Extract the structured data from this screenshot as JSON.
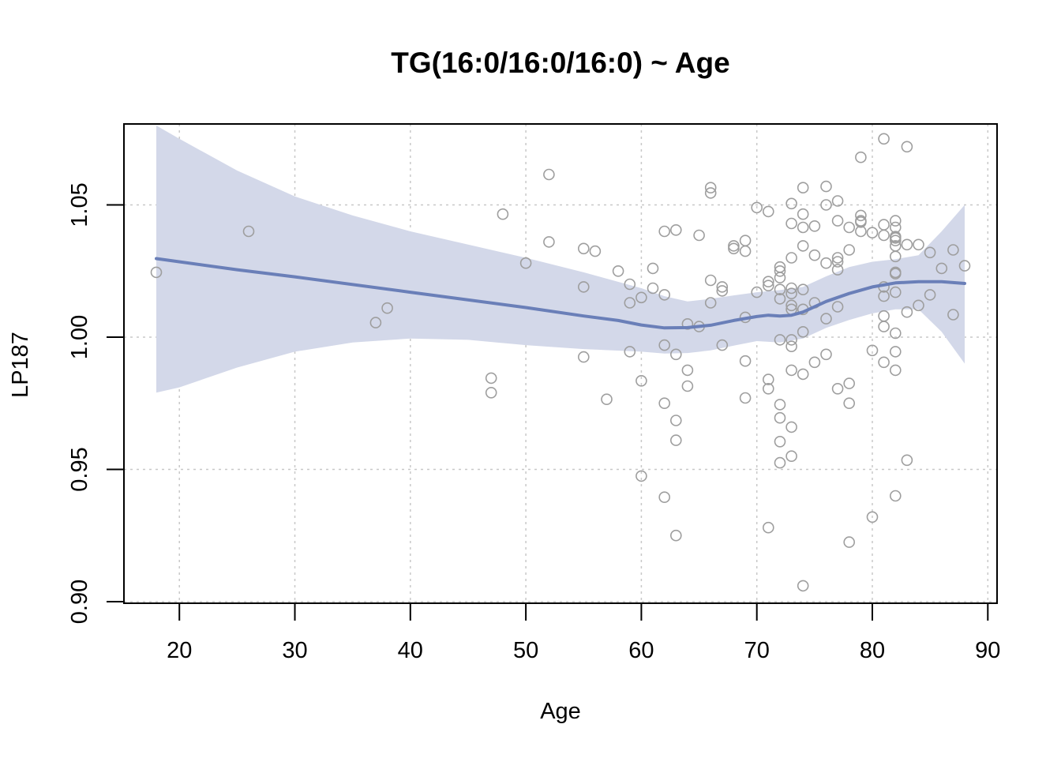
{
  "chart_data": {
    "type": "scatter",
    "title": "TG(16:0/16:0/16:0) ~ Age",
    "xlabel": "Age",
    "ylabel": "LP187",
    "xlim": [
      15.2,
      90.8
    ],
    "ylim": [
      0.8994,
      1.0806
    ],
    "x_ticks": [
      20,
      30,
      40,
      50,
      60,
      70,
      80,
      90
    ],
    "y_ticks": [
      0.9,
      0.95,
      1.0,
      1.05
    ],
    "x_tick_labels": [
      "20",
      "30",
      "40",
      "50",
      "60",
      "70",
      "80",
      "90"
    ],
    "y_tick_labels": [
      "0.90",
      "0.95",
      "1.00",
      "1.05"
    ],
    "grid": true,
    "points": [
      [
        18,
        1.0245
      ],
      [
        26,
        1.04
      ],
      [
        37,
        1.0055
      ],
      [
        38,
        1.011
      ],
      [
        47,
        0.9845
      ],
      [
        47,
        0.979
      ],
      [
        48,
        1.0465
      ],
      [
        50,
        1.028
      ],
      [
        52,
        1.0615
      ],
      [
        52,
        1.036
      ],
      [
        55,
        1.0335
      ],
      [
        55,
        1.019
      ],
      [
        55,
        0.9925
      ],
      [
        56,
        1.0325
      ],
      [
        57,
        0.9765
      ],
      [
        58,
        1.025
      ],
      [
        59,
        1.02
      ],
      [
        59,
        1.013
      ],
      [
        59,
        0.9945
      ],
      [
        60,
        1.015
      ],
      [
        60,
        0.9835
      ],
      [
        60,
        0.9475
      ],
      [
        61,
        1.026
      ],
      [
        61,
        1.0185
      ],
      [
        62,
        1.04
      ],
      [
        62,
        1.016
      ],
      [
        62,
        0.997
      ],
      [
        62,
        0.975
      ],
      [
        62,
        0.9395
      ],
      [
        63,
        1.0405
      ],
      [
        63,
        0.9935
      ],
      [
        63,
        0.9685
      ],
      [
        63,
        0.961
      ],
      [
        63,
        0.925
      ],
      [
        64,
        1.005
      ],
      [
        64,
        0.9875
      ],
      [
        64,
        0.9815
      ],
      [
        65,
        1.0385
      ],
      [
        65,
        1.004
      ],
      [
        66,
        1.0565
      ],
      [
        66,
        1.0545
      ],
      [
        66,
        1.0215
      ],
      [
        66,
        1.013
      ],
      [
        67,
        1.019
      ],
      [
        67,
        1.0175
      ],
      [
        67,
        0.997
      ],
      [
        68,
        1.0345
      ],
      [
        68,
        1.0335
      ],
      [
        69,
        1.0365
      ],
      [
        69,
        1.0325
      ],
      [
        69,
        1.0075
      ],
      [
        69,
        0.991
      ],
      [
        69,
        0.977
      ],
      [
        70,
        1.049
      ],
      [
        70,
        1.017
      ],
      [
        71,
        1.0475
      ],
      [
        71,
        1.021
      ],
      [
        71,
        1.0195
      ],
      [
        71,
        0.984
      ],
      [
        71,
        0.9805
      ],
      [
        71,
        0.928
      ],
      [
        72,
        1.0265
      ],
      [
        72,
        1.025
      ],
      [
        72,
        1.0225
      ],
      [
        72,
        1.018
      ],
      [
        72,
        1.0145
      ],
      [
        72,
        0.999
      ],
      [
        72,
        0.9745
      ],
      [
        72,
        0.9695
      ],
      [
        72,
        0.9605
      ],
      [
        72,
        0.9525
      ],
      [
        73,
        1.0505
      ],
      [
        73,
        1.043
      ],
      [
        73,
        1.03
      ],
      [
        73,
        1.0185
      ],
      [
        73,
        1.0165
      ],
      [
        73,
        1.012
      ],
      [
        73,
        1.0105
      ],
      [
        73,
        0.999
      ],
      [
        73,
        0.9965
      ],
      [
        73,
        0.9875
      ],
      [
        73,
        0.966
      ],
      [
        73,
        0.955
      ],
      [
        74,
        1.0565
      ],
      [
        74,
        1.0465
      ],
      [
        74,
        1.0415
      ],
      [
        74,
        1.0345
      ],
      [
        74,
        1.018
      ],
      [
        74,
        1.0105
      ],
      [
        74,
        1.002
      ],
      [
        74,
        0.986
      ],
      [
        74,
        0.906
      ],
      [
        75,
        1.042
      ],
      [
        75,
        1.031
      ],
      [
        75,
        1.013
      ],
      [
        75,
        0.9905
      ],
      [
        76,
        1.057
      ],
      [
        76,
        1.05
      ],
      [
        76,
        1.028
      ],
      [
        76,
        1.007
      ],
      [
        76,
        0.9935
      ],
      [
        77,
        1.0515
      ],
      [
        77,
        1.044
      ],
      [
        77,
        1.03
      ],
      [
        77,
        1.0285
      ],
      [
        77,
        1.0255
      ],
      [
        77,
        1.0115
      ],
      [
        77,
        0.9805
      ],
      [
        78,
        1.0415
      ],
      [
        78,
        1.033
      ],
      [
        78,
        0.9825
      ],
      [
        78,
        0.975
      ],
      [
        78,
        0.9225
      ],
      [
        79,
        1.068
      ],
      [
        79,
        1.046
      ],
      [
        79,
        1.044
      ],
      [
        79,
        1.0435
      ],
      [
        79,
        1.04
      ],
      [
        80,
        1.0395
      ],
      [
        80,
        0.995
      ],
      [
        80,
        0.932
      ],
      [
        81,
        1.075
      ],
      [
        81,
        1.0425
      ],
      [
        81,
        1.0385
      ],
      [
        81,
        1.019
      ],
      [
        81,
        1.0155
      ],
      [
        81,
        1.008
      ],
      [
        81,
        1.004
      ],
      [
        81,
        0.9905
      ],
      [
        82,
        1.044
      ],
      [
        82,
        1.0415
      ],
      [
        82,
        1.038
      ],
      [
        82,
        1.0375
      ],
      [
        82,
        1.0365
      ],
      [
        82,
        1.0345
      ],
      [
        82,
        1.0305
      ],
      [
        82,
        1.0245
      ],
      [
        82,
        1.024
      ],
      [
        82,
        1.017
      ],
      [
        82,
        1.0015
      ],
      [
        82,
        0.9945
      ],
      [
        82,
        0.9875
      ],
      [
        82,
        0.94
      ],
      [
        83,
        1.072
      ],
      [
        83,
        1.035
      ],
      [
        83,
        1.0095
      ],
      [
        83,
        0.9535
      ],
      [
        84,
        1.035
      ],
      [
        84,
        1.012
      ],
      [
        85,
        1.032
      ],
      [
        85,
        1.016
      ],
      [
        86,
        1.026
      ],
      [
        87,
        1.033
      ],
      [
        87,
        1.0085
      ],
      [
        88,
        1.027
      ]
    ],
    "smooth_line": [
      [
        18,
        1.0297
      ],
      [
        25,
        1.0255
      ],
      [
        30,
        1.0228
      ],
      [
        40,
        1.017
      ],
      [
        50,
        1.0112
      ],
      [
        55,
        1.008
      ],
      [
        58,
        1.0063
      ],
      [
        60,
        1.0046
      ],
      [
        62,
        1.0035
      ],
      [
        64,
        1.0036
      ],
      [
        66,
        1.0045
      ],
      [
        68,
        1.0063
      ],
      [
        70,
        1.0078
      ],
      [
        71,
        1.0083
      ],
      [
        72,
        1.008
      ],
      [
        73,
        1.0083
      ],
      [
        74,
        1.0095
      ],
      [
        76,
        1.0135
      ],
      [
        78,
        1.0165
      ],
      [
        80,
        1.019
      ],
      [
        82,
        1.0205
      ],
      [
        84,
        1.021
      ],
      [
        86,
        1.021
      ],
      [
        88,
        1.0203
      ]
    ],
    "ci_upper": [
      [
        18,
        1.08
      ],
      [
        20,
        1.075
      ],
      [
        25,
        1.063
      ],
      [
        30,
        1.0532
      ],
      [
        35,
        1.046
      ],
      [
        40,
        1.04
      ],
      [
        45,
        1.035
      ],
      [
        50,
        1.03
      ],
      [
        55,
        1.0245
      ],
      [
        60,
        1.0185
      ],
      [
        62,
        1.0155
      ],
      [
        64,
        1.0135
      ],
      [
        66,
        1.0145
      ],
      [
        68,
        1.0158
      ],
      [
        70,
        1.017
      ],
      [
        72,
        1.0178
      ],
      [
        74,
        1.019
      ],
      [
        76,
        1.023
      ],
      [
        78,
        1.0265
      ],
      [
        80,
        1.0285
      ],
      [
        82,
        1.0295
      ],
      [
        84,
        1.031
      ],
      [
        86,
        1.04
      ],
      [
        88,
        1.05
      ]
    ],
    "ci_lower": [
      [
        18,
        0.979
      ],
      [
        20,
        0.981
      ],
      [
        25,
        0.9885
      ],
      [
        30,
        0.9945
      ],
      [
        35,
        0.998
      ],
      [
        40,
        0.9995
      ],
      [
        45,
        0.999
      ],
      [
        50,
        0.997
      ],
      [
        55,
        0.9955
      ],
      [
        60,
        0.9945
      ],
      [
        62,
        0.9938
      ],
      [
        64,
        0.994
      ],
      [
        66,
        0.995
      ],
      [
        68,
        0.9968
      ],
      [
        70,
        0.9985
      ],
      [
        72,
        0.998
      ],
      [
        74,
        0.9995
      ],
      [
        76,
        1.0035
      ],
      [
        78,
        1.0065
      ],
      [
        80,
        1.009
      ],
      [
        82,
        1.0105
      ],
      [
        84,
        1.0105
      ],
      [
        86,
        1.002
      ],
      [
        88,
        0.99
      ]
    ],
    "colors": {
      "points": "#9e9e9e",
      "line": "#6a7fb8",
      "ribbon": "#d3d8e9",
      "grid": "#c8c8c8"
    }
  }
}
